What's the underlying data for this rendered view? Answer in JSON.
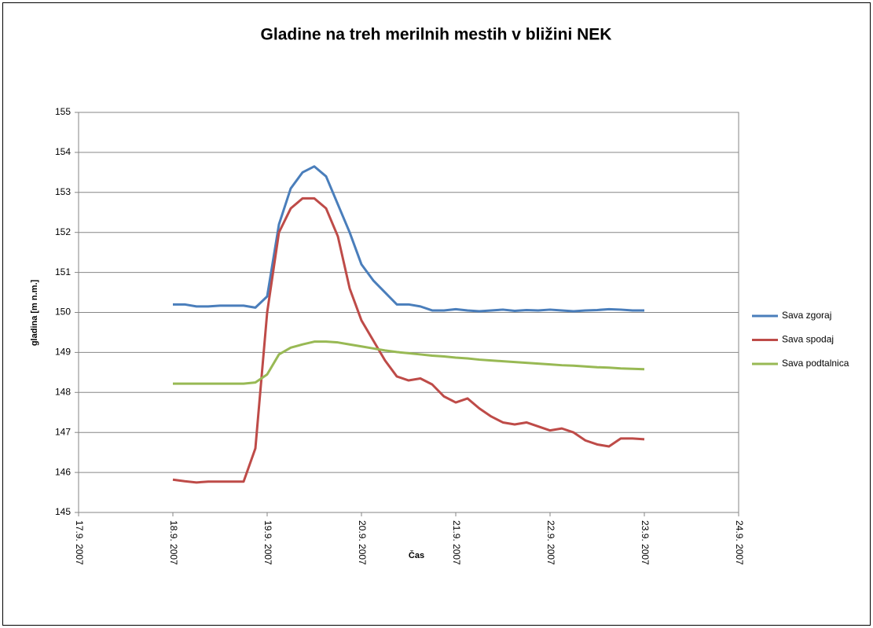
{
  "chart_data": {
    "type": "line",
    "title": "Gladine na treh merilnih mestih v bližini NEK",
    "x_label": "Čas",
    "y_label": "gladina [m n.m.]",
    "x": [
      "2007-09-18 00:00",
      "2007-09-18 03:00",
      "2007-09-18 06:00",
      "2007-09-18 09:00",
      "2007-09-18 12:00",
      "2007-09-18 15:00",
      "2007-09-18 18:00",
      "2007-09-18 21:00",
      "2007-09-19 00:00",
      "2007-09-19 03:00",
      "2007-09-19 06:00",
      "2007-09-19 09:00",
      "2007-09-19 12:00",
      "2007-09-19 15:00",
      "2007-09-19 18:00",
      "2007-09-19 21:00",
      "2007-09-20 00:00",
      "2007-09-20 03:00",
      "2007-09-20 06:00",
      "2007-09-20 09:00",
      "2007-09-20 12:00",
      "2007-09-20 15:00",
      "2007-09-20 18:00",
      "2007-09-20 21:00",
      "2007-09-21 00:00",
      "2007-09-21 03:00",
      "2007-09-21 06:00",
      "2007-09-21 09:00",
      "2007-09-21 12:00",
      "2007-09-21 15:00",
      "2007-09-21 18:00",
      "2007-09-21 21:00",
      "2007-09-22 00:00",
      "2007-09-22 03:00",
      "2007-09-22 06:00",
      "2007-09-22 09:00",
      "2007-09-22 12:00",
      "2007-09-22 15:00",
      "2007-09-22 18:00",
      "2007-09-22 21:00",
      "2007-09-23 00:00"
    ],
    "series": [
      {
        "name": "Sava zgoraj",
        "color": "#4a7ebb",
        "values": [
          150.2,
          150.2,
          150.15,
          150.15,
          150.17,
          150.17,
          150.17,
          150.12,
          150.4,
          152.2,
          153.1,
          153.5,
          153.65,
          153.4,
          152.7,
          152.0,
          151.2,
          150.8,
          150.5,
          150.2,
          150.2,
          150.15,
          150.05,
          150.05,
          150.08,
          150.05,
          150.03,
          150.05,
          150.07,
          150.04,
          150.06,
          150.05,
          150.07,
          150.05,
          150.03,
          150.05,
          150.06,
          150.08,
          150.07,
          150.05,
          150.05
        ]
      },
      {
        "name": "Sava spodaj",
        "color": "#be4b48",
        "values": [
          145.82,
          145.78,
          145.75,
          145.77,
          145.77,
          145.77,
          145.77,
          146.6,
          150.0,
          152.0,
          152.6,
          152.85,
          152.85,
          152.6,
          151.9,
          150.6,
          149.8,
          149.3,
          148.8,
          148.4,
          148.3,
          148.35,
          148.2,
          147.9,
          147.75,
          147.85,
          147.6,
          147.4,
          147.25,
          147.2,
          147.25,
          147.15,
          147.05,
          147.1,
          147.0,
          146.8,
          146.7,
          146.65,
          146.85,
          146.85,
          146.83
        ]
      },
      {
        "name": "Sava podtalnica",
        "color": "#98b954",
        "values": [
          148.22,
          148.22,
          148.22,
          148.22,
          148.22,
          148.22,
          148.22,
          148.25,
          148.45,
          148.95,
          149.12,
          149.2,
          149.27,
          149.27,
          149.25,
          149.2,
          149.15,
          149.1,
          149.05,
          149.01,
          148.98,
          148.95,
          148.92,
          148.9,
          148.87,
          148.85,
          148.82,
          148.8,
          148.78,
          148.76,
          148.74,
          148.72,
          148.7,
          148.68,
          148.67,
          148.65,
          148.63,
          148.62,
          148.6,
          148.59,
          148.58
        ]
      }
    ],
    "xlim": [
      "2007-09-17 00:00",
      "2007-09-24 00:00"
    ],
    "xticks": [
      {
        "value": "2007-09-17 00:00",
        "label": "17.9. 2007"
      },
      {
        "value": "2007-09-18 00:00",
        "label": "18.9. 2007"
      },
      {
        "value": "2007-09-19 00:00",
        "label": "19.9. 2007"
      },
      {
        "value": "2007-09-20 00:00",
        "label": "20.9. 2007"
      },
      {
        "value": "2007-09-21 00:00",
        "label": "21.9. 2007"
      },
      {
        "value": "2007-09-22 00:00",
        "label": "22.9. 2007"
      },
      {
        "value": "2007-09-23 00:00",
        "label": "23.9. 2007"
      },
      {
        "value": "2007-09-24 00:00",
        "label": "24.9. 2007"
      }
    ],
    "ylim": [
      145,
      155
    ],
    "yticks": [
      145,
      146,
      147,
      148,
      149,
      150,
      151,
      152,
      153,
      154,
      155
    ],
    "grid": true,
    "legend": "right"
  }
}
